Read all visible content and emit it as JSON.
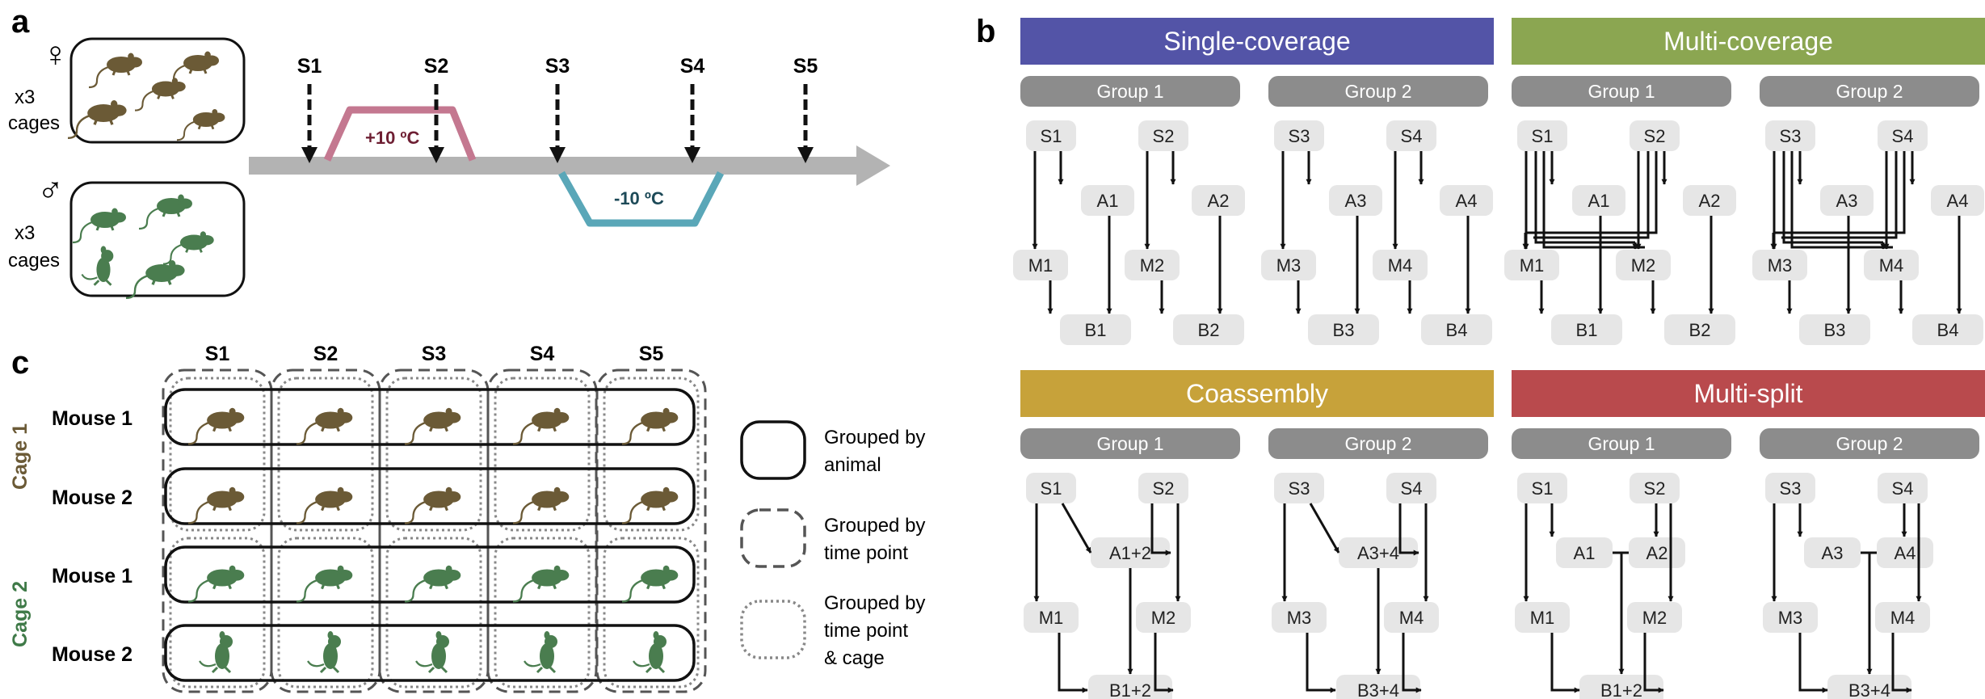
{
  "panel_a": {
    "label": "a",
    "female_symbol": "♀",
    "male_symbol": "♂",
    "cages_label_1": "x3",
    "cages_label_2": "cages",
    "timepoints": [
      "S1",
      "S2",
      "S3",
      "S4",
      "S5"
    ],
    "heat_label": "+10 ºC",
    "cold_label": "-10 ºC",
    "colors": {
      "heat": "#c47890",
      "cold": "#5aa7b8",
      "heat_text": "#6e1f33",
      "cold_text": "#1d4a58",
      "axis": "#b3b3b3"
    }
  },
  "panel_b": {
    "label": "b",
    "strategies": [
      {
        "title": "Single-coverage",
        "color": "#5354a7",
        "groups": [
          {
            "label": "Group 1",
            "samples": [
              "S1",
              "S2"
            ],
            "assemblies": [
              "A1",
              "A2"
            ],
            "maps": [
              "M1",
              "M2"
            ],
            "bins": [
              "B1",
              "B2"
            ]
          },
          {
            "label": "Group 2",
            "samples": [
              "S3",
              "S4"
            ],
            "assemblies": [
              "A3",
              "A4"
            ],
            "maps": [
              "M3",
              "M4"
            ],
            "bins": [
              "B3",
              "B4"
            ]
          }
        ]
      },
      {
        "title": "Multi-coverage",
        "color": "#8ba651",
        "groups": [
          {
            "label": "Group 1",
            "samples": [
              "S1",
              "S2"
            ],
            "assemblies": [
              "A1",
              "A2"
            ],
            "maps": [
              "M1",
              "M2"
            ],
            "bins": [
              "B1",
              "B2"
            ]
          },
          {
            "label": "Group 2",
            "samples": [
              "S3",
              "S4"
            ],
            "assemblies": [
              "A3",
              "A4"
            ],
            "maps": [
              "M3",
              "M4"
            ],
            "bins": [
              "B3",
              "B4"
            ]
          }
        ]
      },
      {
        "title": "Coassembly",
        "color": "#c7a23a",
        "groups": [
          {
            "label": "Group 1",
            "samples": [
              "S1",
              "S2"
            ],
            "assembly": "A1+2",
            "maps": [
              "M1",
              "M2"
            ],
            "bin": "B1+2"
          },
          {
            "label": "Group 2",
            "samples": [
              "S3",
              "S4"
            ],
            "assembly": "A3+4",
            "maps": [
              "M3",
              "M4"
            ],
            "bin": "B3+4"
          }
        ]
      },
      {
        "title": "Multi-split",
        "color": "#b94a4d",
        "groups": [
          {
            "label": "Group 1",
            "samples": [
              "S1",
              "S2"
            ],
            "assemblies": [
              "A1",
              "A2"
            ],
            "maps": [
              "M1",
              "M2"
            ],
            "bin": "B1+2"
          },
          {
            "label": "Group 2",
            "samples": [
              "S3",
              "S4"
            ],
            "assemblies": [
              "A3",
              "A4"
            ],
            "maps": [
              "M3",
              "M4"
            ],
            "bin": "B3+4"
          }
        ]
      }
    ]
  },
  "panel_c": {
    "label": "c",
    "timepoints": [
      "S1",
      "S2",
      "S3",
      "S4",
      "S5"
    ],
    "cages": [
      {
        "label": "Cage 1",
        "color": "#6b5a36",
        "mice": [
          "Mouse 1",
          "Mouse 2"
        ]
      },
      {
        "label": "Cage 2",
        "color": "#3f7a48",
        "mice": [
          "Mouse 1",
          "Mouse 2"
        ]
      }
    ],
    "legend": [
      {
        "style": "solid",
        "lines": [
          "Grouped by",
          "animal"
        ]
      },
      {
        "style": "dashed",
        "lines": [
          "Grouped by",
          "time point"
        ]
      },
      {
        "style": "dotted",
        "lines": [
          "Grouped by",
          "time point",
          "& cage"
        ]
      }
    ]
  },
  "colors": {
    "mouse_brown": "#6b5a36",
    "mouse_green": "#4a7d4f",
    "box_gray": "#e6e6e6",
    "header_gray": "#8c8c8c"
  }
}
